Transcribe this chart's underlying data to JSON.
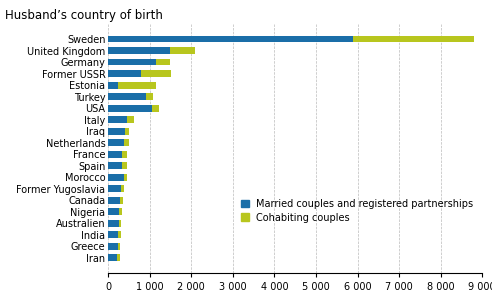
{
  "title": "Husband’s country of birth",
  "categories": [
    "Iran",
    "Greece",
    "India",
    "Australien",
    "Nigeria",
    "Canada",
    "Former Yugoslavia",
    "Morocco",
    "Spain",
    "France",
    "Netherlands",
    "Iraq",
    "Italy",
    "USA",
    "Turkey",
    "Estonia",
    "Former USSR",
    "Germany",
    "United Kingdom",
    "Sweden"
  ],
  "married": [
    220,
    230,
    240,
    250,
    260,
    280,
    300,
    370,
    340,
    340,
    380,
    400,
    440,
    1050,
    900,
    230,
    780,
    1150,
    1480,
    5900
  ],
  "cohabiting": [
    60,
    55,
    60,
    65,
    70,
    75,
    70,
    85,
    100,
    100,
    110,
    110,
    170,
    170,
    180,
    920,
    720,
    330,
    620,
    2900
  ],
  "married_color": "#1a6ea8",
  "cohabiting_color": "#b8c61e",
  "xlim": [
    0,
    9000
  ],
  "xticks": [
    0,
    1000,
    2000,
    3000,
    4000,
    5000,
    6000,
    7000,
    8000,
    9000
  ],
  "xtick_labels": [
    "0",
    "1 000",
    "2 000",
    "3 000",
    "4 000",
    "5 000",
    "6 000",
    "7 000",
    "8 000",
    "9 000"
  ],
  "legend_married": "Married couples and registered partnerships",
  "legend_cohabiting": "Cohabiting couples",
  "bar_height": 0.6,
  "title_fontsize": 8.5,
  "tick_fontsize": 7,
  "legend_fontsize": 7
}
